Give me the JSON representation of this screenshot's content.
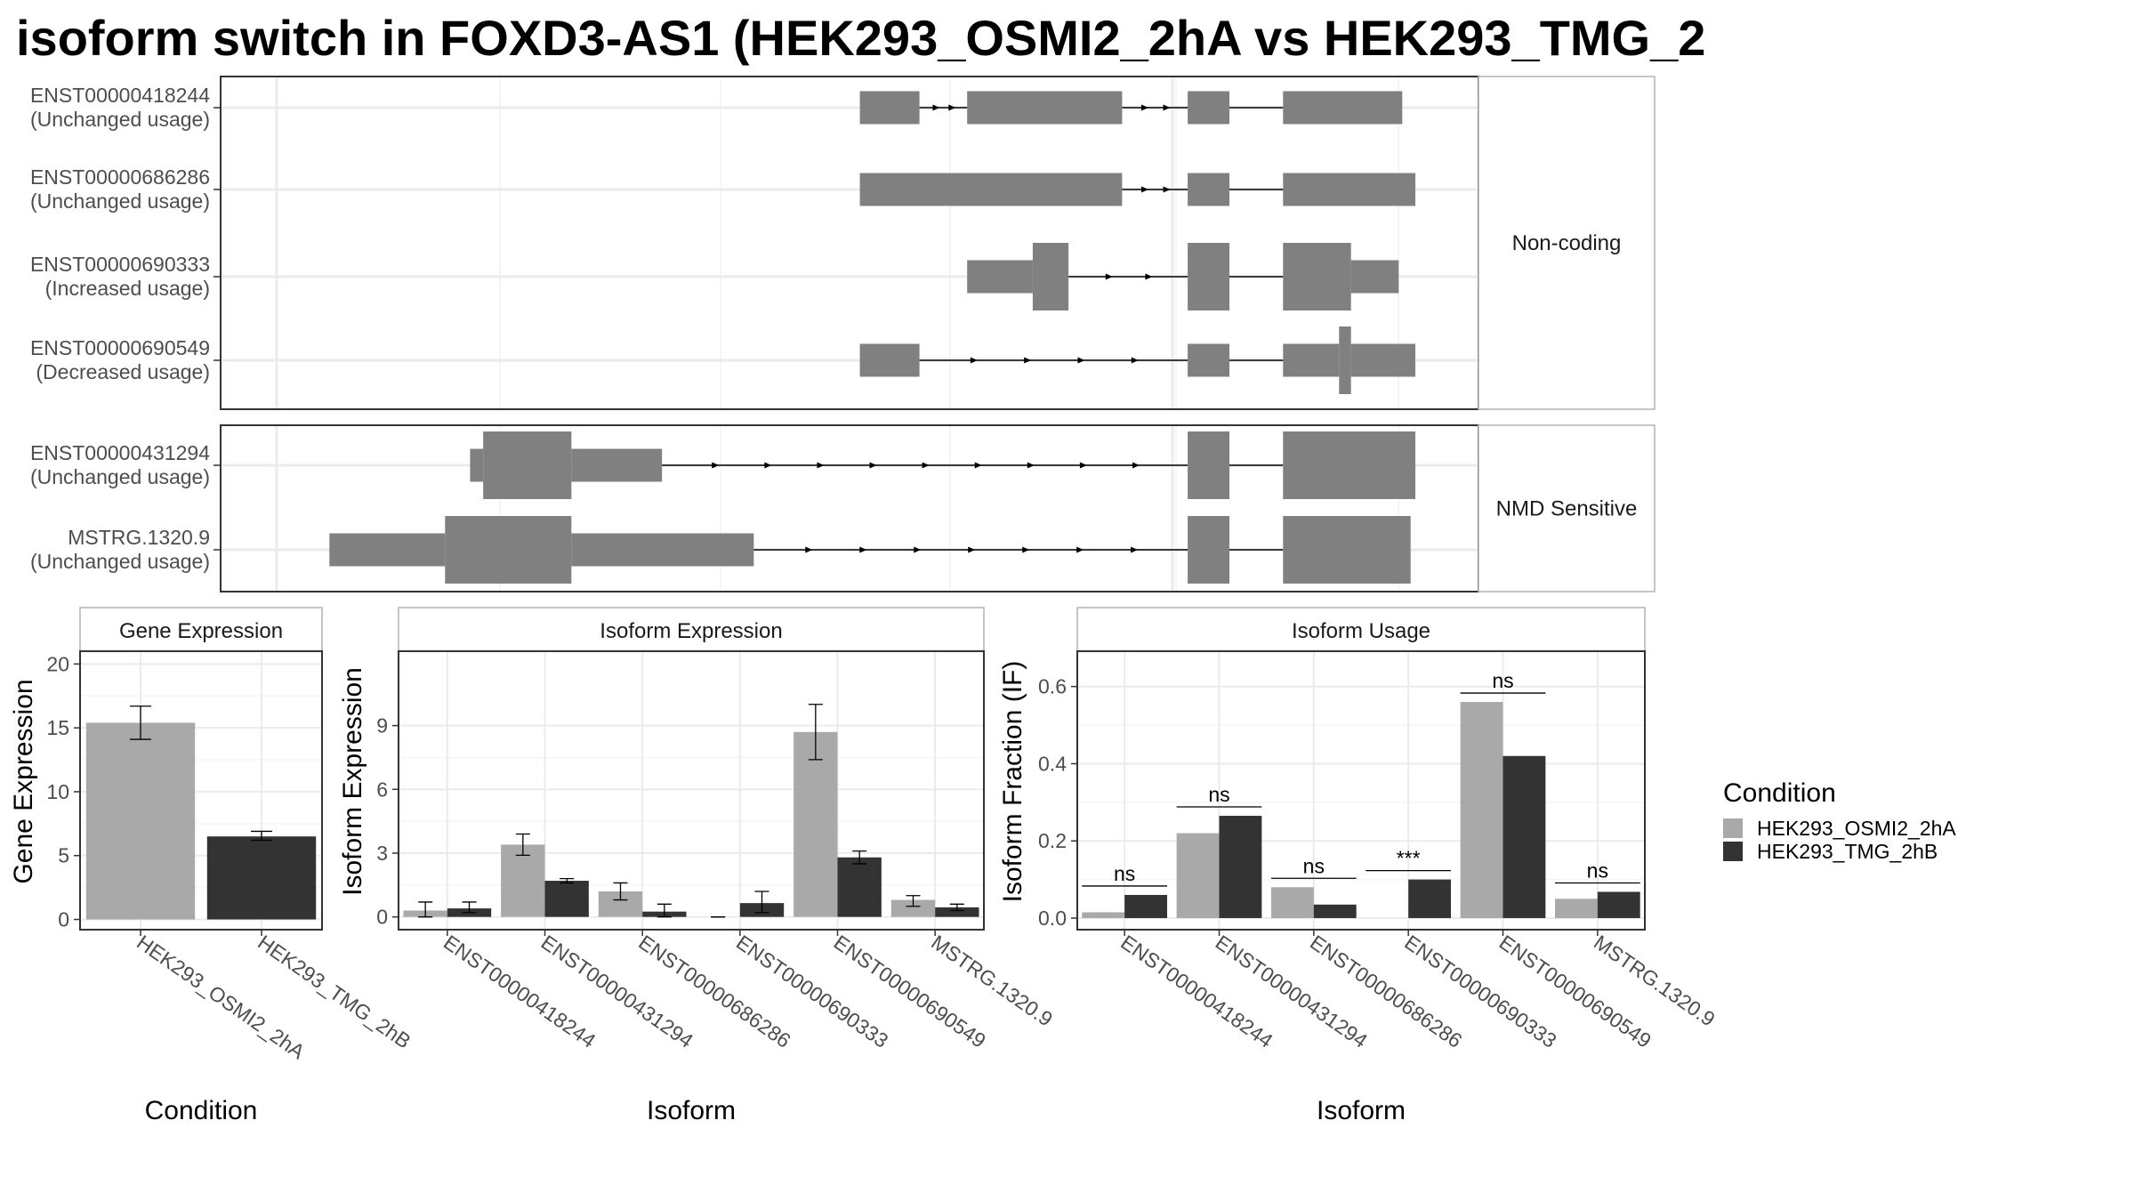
{
  "title": "isoform switch in FOXD3-AS1 (HEK293_OSMI2_2hA vs HEK293_TMG_2",
  "colors": {
    "exon": "#808080",
    "panel_border": "#333333",
    "strip_border": "#b3b3b3",
    "grid_major": "#ebebeb",
    "grid_minor": "#f5f5f5",
    "axis_text": "#4d4d4d",
    "condition_a": "#a9a9a9",
    "condition_b": "#333333"
  },
  "structure": {
    "groups": [
      {
        "label": "Non-coding",
        "isoforms": [
          {
            "id": "ENST00000418244",
            "usage": "(Unchanged usage)",
            "exons": [
              [
                0.49,
                0.54,
                "full"
              ],
              [
                0.58,
                0.71,
                "full"
              ],
              [
                0.765,
                0.8,
                "full"
              ],
              [
                0.845,
                0.945,
                "full"
              ]
            ],
            "arrows": [
              [
                0.54,
                0.58,
                2
              ],
              [
                0.71,
                0.765,
                2
              ]
            ],
            "lines": [
              [
                0.8,
                0.845
              ]
            ]
          },
          {
            "id": "ENST00000686286",
            "usage": "(Unchanged usage)",
            "exons": [
              [
                0.49,
                0.71,
                "full"
              ],
              [
                0.765,
                0.8,
                "full"
              ],
              [
                0.845,
                0.956,
                "full"
              ]
            ],
            "arrows": [
              [
                0.71,
                0.765,
                2
              ]
            ],
            "lines": [
              [
                0.8,
                0.845
              ]
            ]
          },
          {
            "id": "ENST00000690333",
            "usage": "(Increased usage)",
            "exons": [
              [
                0.58,
                0.635,
                "half"
              ],
              [
                0.635,
                0.665,
                "full"
              ],
              [
                0.765,
                0.8,
                "full"
              ],
              [
                0.845,
                0.902,
                "full"
              ],
              [
                0.902,
                0.942,
                "half"
              ]
            ],
            "arrows": [
              [
                0.665,
                0.765,
                2
              ]
            ],
            "lines": [
              [
                0.8,
                0.845
              ]
            ]
          },
          {
            "id": "ENST00000690549",
            "usage": "(Decreased usage)",
            "exons": [
              [
                0.49,
                0.54,
                "full"
              ],
              [
                0.765,
                0.8,
                "full"
              ],
              [
                0.845,
                0.892,
                "full"
              ],
              [
                0.892,
                0.902,
                "tall"
              ],
              [
                0.902,
                0.956,
                "full"
              ]
            ],
            "arrows": [
              [
                0.54,
                0.765,
                4
              ]
            ],
            "lines": [
              [
                0.8,
                0.845
              ]
            ]
          }
        ]
      },
      {
        "label": "NMD Sensitive",
        "isoforms": [
          {
            "id": "ENST00000431294",
            "usage": "(Unchanged usage)",
            "exons": [
              [
                0.163,
                0.174,
                "half"
              ],
              [
                0.174,
                0.248,
                "full"
              ],
              [
                0.248,
                0.324,
                "half"
              ],
              [
                0.765,
                0.8,
                "full"
              ],
              [
                0.845,
                0.956,
                "full"
              ]
            ],
            "arrows": [
              [
                0.324,
                0.765,
                9
              ]
            ],
            "lines": [
              [
                0.8,
                0.845
              ]
            ]
          },
          {
            "id": "MSTRG.1320.9",
            "usage": "(Unchanged usage)",
            "exons": [
              [
                0.045,
                0.142,
                "half"
              ],
              [
                0.142,
                0.248,
                "full"
              ],
              [
                0.248,
                0.401,
                "half"
              ],
              [
                0.765,
                0.8,
                "full"
              ],
              [
                0.845,
                0.952,
                "full"
              ]
            ],
            "arrows": [
              [
                0.401,
                0.765,
                7
              ]
            ],
            "lines": [
              [
                0.8,
                0.845
              ]
            ]
          }
        ]
      }
    ]
  },
  "chart_data": [
    {
      "type": "bar",
      "title": "Gene Expression",
      "xlabel": "Condition",
      "ylabel": "Gene Expression",
      "ylim": [
        -0.8,
        21
      ],
      "yticks": [
        0,
        5,
        10,
        15,
        20
      ],
      "categories": [
        "HEK293_OSMI2_2hA",
        "HEK293_TMG_2hB"
      ],
      "values": [
        15.4,
        6.5
      ],
      "error": [
        [
          14.1,
          16.7
        ],
        [
          6.2,
          6.9
        ]
      ],
      "colors": [
        "#a9a9a9",
        "#333333"
      ]
    },
    {
      "type": "bar",
      "title": "Isoform Expression",
      "xlabel": "Isoform",
      "ylabel": "Isoform Expression",
      "ylim": [
        -0.6,
        12.5
      ],
      "yticks": [
        0,
        3,
        6,
        9
      ],
      "categories": [
        "ENST00000418244",
        "ENST00000431294",
        "ENST00000686286",
        "ENST00000690333",
        "ENST00000690549",
        "MSTRG.1320.9"
      ],
      "series": [
        {
          "name": "HEK293_OSMI2_2hA",
          "values": [
            0.3,
            3.4,
            1.2,
            0.0,
            8.7,
            0.8
          ],
          "error": [
            [
              0.0,
              0.7
            ],
            [
              2.9,
              3.9
            ],
            [
              0.8,
              1.6
            ],
            [
              0.0,
              0.0
            ],
            [
              7.4,
              10.0
            ],
            [
              0.5,
              1.0
            ]
          ]
        },
        {
          "name": "HEK293_TMG_2hB",
          "values": [
            0.4,
            1.7,
            0.25,
            0.65,
            2.8,
            0.45
          ],
          "error": [
            [
              0.2,
              0.7
            ],
            [
              1.6,
              1.8
            ],
            [
              0.0,
              0.6
            ],
            [
              0.2,
              1.2
            ],
            [
              2.5,
              3.1
            ],
            [
              0.3,
              0.6
            ]
          ]
        }
      ]
    },
    {
      "type": "bar",
      "title": "Isoform Usage",
      "xlabel": "Isoform",
      "ylabel": "Isoform Fraction (IF)",
      "ylim": [
        -0.03,
        0.6915
      ],
      "yticks": [
        0.0,
        0.2,
        0.4,
        0.6
      ],
      "ytick_labels": [
        "0.0",
        "0.2",
        "0.4",
        "0.6"
      ],
      "categories": [
        "ENST00000418244",
        "ENST00000431294",
        "ENST00000686286",
        "ENST00000690333",
        "ENST00000690549",
        "MSTRG.1320.9"
      ],
      "series": [
        {
          "name": "HEK293_OSMI2_2hA",
          "values": [
            0.015,
            0.22,
            0.08,
            0.0,
            0.56,
            0.05
          ]
        },
        {
          "name": "HEK293_TMG_2hB",
          "values": [
            0.06,
            0.265,
            0.035,
            0.1,
            0.42,
            0.068
          ]
        }
      ],
      "significance": [
        "ns",
        "ns",
        "ns",
        "***",
        "ns",
        "ns"
      ]
    }
  ],
  "legend": {
    "title": "Condition",
    "items": [
      {
        "label": "HEK293_OSMI2_2hA",
        "color": "#a9a9a9"
      },
      {
        "label": "HEK293_TMG_2hB",
        "color": "#333333"
      }
    ]
  }
}
